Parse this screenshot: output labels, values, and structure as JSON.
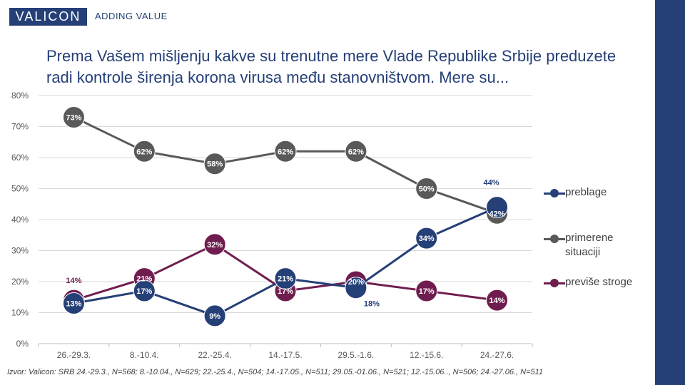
{
  "header": {
    "logo_text": "VALICON",
    "tagline": "ADDING VALUE"
  },
  "title_text": "Prema Vašem mišljenju kakve su trenutne mere Vlade Republike Srbije preduzete radi kontrole širenja korona virusa među stanovništvom. Mere su...",
  "source_text": "Izvor: Valicon: SRB 24.-29.3., N=568; 8.-10.04., N=629; 22.-25.4., N=504; 14.-17.05., N=511; 29.05.-01.06., N=521; 12.-15.06.., N=506; 24.-27.06., N=511",
  "colors": {
    "brand": "#253f77",
    "preblage": "#253f77",
    "primerene": "#595959",
    "previse": "#6f1d4f"
  },
  "chart_data": {
    "type": "line",
    "categories": [
      "26.-29.3.",
      "8.-10.4.",
      "22.-25.4.",
      "14.-17.5.",
      "29.5.-1.6.",
      "12.-15.6.",
      "24.-27.6."
    ],
    "ylim": [
      0,
      80
    ],
    "yticks": [
      0,
      10,
      20,
      30,
      40,
      50,
      60,
      70,
      80
    ],
    "ytick_labels": [
      "0%",
      "10%",
      "20%",
      "30%",
      "40%",
      "50%",
      "60%",
      "70%",
      "80%"
    ],
    "grid": true,
    "legend_position": "right",
    "series": [
      {
        "name": "primerene situaciji",
        "color": "#595959",
        "values": [
          73,
          62,
          58,
          62,
          62,
          50,
          42
        ],
        "labels": [
          "73%",
          "62%",
          "58%",
          "62%",
          "62%",
          "50%",
          "42%"
        ]
      },
      {
        "name": "previše stroge",
        "color": "#6f1d4f",
        "values": [
          14,
          21,
          32,
          17,
          20,
          17,
          14
        ],
        "labels": [
          "14%",
          "21%",
          "32%",
          "17%",
          "20%",
          "17%",
          "14%"
        ]
      },
      {
        "name": "preblage",
        "color": "#253f77",
        "values": [
          13,
          17,
          9,
          21,
          18,
          34,
          44
        ],
        "labels": [
          "13%",
          "17%",
          "9%",
          "21%",
          "18%",
          "34%",
          "44%"
        ]
      }
    ]
  },
  "legend": {
    "items": [
      {
        "label": "preblage",
        "color": "#253f77"
      },
      {
        "label": "primerene situaciji",
        "color": "#595959"
      },
      {
        "label": "previše stroge",
        "color": "#6f1d4f"
      }
    ]
  }
}
